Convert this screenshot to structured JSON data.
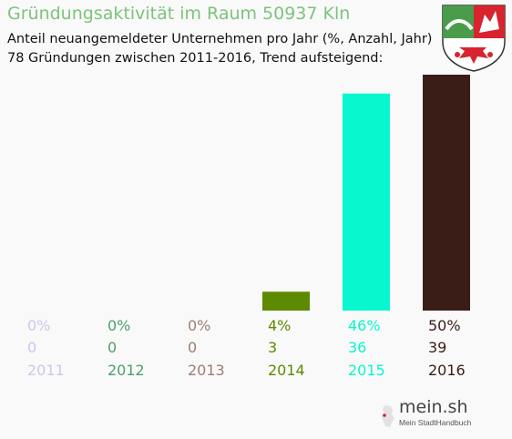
{
  "header": {
    "title": "Gründungsaktivität im Raum 50937 Kln",
    "subtitle_line1": "Anteil neuangemeldeter Unternehmen pro Jahr (%, Anzahl, Jahr)",
    "subtitle_line2": "78 Gründungen zwischen 2011-2016, Trend aufsteigend:"
  },
  "chart_data": {
    "type": "bar",
    "categories": [
      "2011",
      "2012",
      "2013",
      "2014",
      "2015",
      "2016"
    ],
    "values": [
      0,
      0,
      0,
      4,
      46,
      50
    ],
    "percent_labels": [
      "0%",
      "0%",
      "0%",
      "4%",
      "46%",
      "50%"
    ],
    "counts": [
      "0",
      "0",
      "0",
      "3",
      "36",
      "39"
    ],
    "colors": [
      "#cfc6ea",
      "#4aa06b",
      "#9b7f72",
      "#5d8a00",
      "#08f7cf",
      "#3b1d17"
    ],
    "ylim": [
      0,
      50
    ]
  },
  "branding": {
    "name": "mein.sh",
    "tagline": "Mein StadtHandbuch"
  },
  "colors": {
    "title": "#7cc47c",
    "background": "#f9f9f9"
  }
}
